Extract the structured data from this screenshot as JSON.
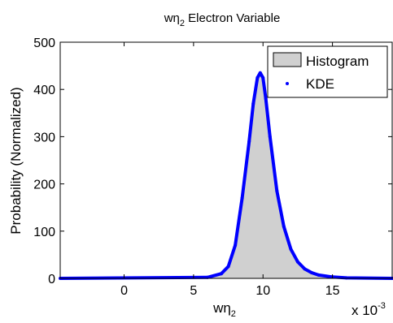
{
  "chart_data": {
    "type": "area",
    "title_main": "wη",
    "title_sub": "2",
    "title_rest": " Electron Variable",
    "xlabel_main": "wη",
    "xlabel_sub": "2",
    "ylabel": "Probability (Normalized)",
    "x_multiplier_base": "x 10",
    "x_multiplier_exp": "-3",
    "xlim": [
      -4.6,
      19.3
    ],
    "ylim": [
      0,
      500
    ],
    "xticks": [
      0,
      5,
      10,
      15
    ],
    "xtick_labels": [
      "0",
      "5",
      "10",
      "15"
    ],
    "yticks": [
      0,
      100,
      200,
      300,
      400,
      500
    ],
    "ytick_labels": [
      "0",
      "100",
      "200",
      "300",
      "400",
      "500"
    ],
    "grid": false,
    "legend_position": "top-right",
    "series": [
      {
        "name": "Histogram",
        "kind": "histogram",
        "color": "#d0d0d0",
        "x": [
          -4.6,
          6.0,
          7.0,
          7.5,
          8.0,
          8.5,
          9.0,
          9.3,
          9.6,
          9.8,
          10.0,
          10.2,
          10.5,
          11.0,
          11.5,
          12.0,
          12.5,
          13.0,
          13.5,
          14.0,
          15.0,
          16.0,
          19.3
        ],
        "values": [
          0,
          2,
          10,
          25,
          70,
          170,
          290,
          370,
          425,
          435,
          425,
          380,
          300,
          185,
          110,
          62,
          35,
          20,
          12,
          7,
          3,
          1,
          0
        ]
      },
      {
        "name": "KDE",
        "kind": "line",
        "color": "#0000ff",
        "x": [
          -4.6,
          6.0,
          7.0,
          7.5,
          8.0,
          8.5,
          9.0,
          9.3,
          9.6,
          9.8,
          10.0,
          10.2,
          10.5,
          11.0,
          11.5,
          12.0,
          12.5,
          13.0,
          13.5,
          14.0,
          15.0,
          16.0,
          19.3
        ],
        "values": [
          0,
          2,
          10,
          25,
          70,
          170,
          290,
          370,
          425,
          435,
          425,
          380,
          300,
          185,
          110,
          62,
          35,
          20,
          12,
          7,
          3,
          1,
          0
        ]
      }
    ]
  }
}
